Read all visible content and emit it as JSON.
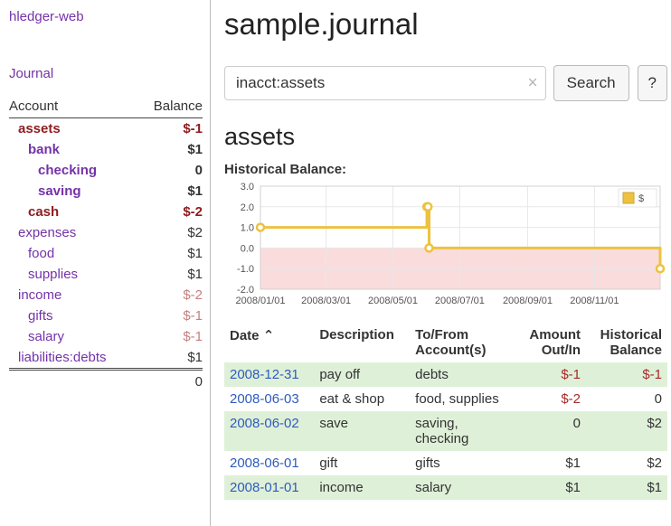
{
  "app": {
    "brand": "hledger-web"
  },
  "sidebar": {
    "journal_link": "Journal",
    "table": {
      "account_header": "Account",
      "balance_header": "Balance"
    },
    "accounts": [
      {
        "name": "assets",
        "balance": "$-1"
      },
      {
        "name": "bank",
        "balance": "$1"
      },
      {
        "name": "checking",
        "balance": "0"
      },
      {
        "name": "saving",
        "balance": "$1"
      },
      {
        "name": "cash",
        "balance": "$-2"
      },
      {
        "name": "expenses",
        "balance": "$2"
      },
      {
        "name": "food",
        "balance": "$1"
      },
      {
        "name": "supplies",
        "balance": "$1"
      },
      {
        "name": "income",
        "balance": "$-2"
      },
      {
        "name": "gifts",
        "balance": "$-1"
      },
      {
        "name": "salary",
        "balance": "$-1"
      },
      {
        "name": "liabilities:debts",
        "balance": "$1"
      }
    ],
    "total": "0"
  },
  "header": {
    "title": "sample.journal"
  },
  "search": {
    "value": "inacct:assets",
    "clear_icon": "×",
    "button": "Search",
    "help_button": "?"
  },
  "account_page": {
    "heading": "assets",
    "chart_label": "Historical Balance:"
  },
  "chart_data": {
    "type": "line",
    "step": true,
    "title": "Historical Balance",
    "series": [
      {
        "name": "$",
        "points": [
          [
            "2008-01-01",
            1
          ],
          [
            "2008-06-01",
            2
          ],
          [
            "2008-06-02",
            2
          ],
          [
            "2008-06-03",
            0
          ],
          [
            "2008-12-31",
            -1
          ]
        ]
      }
    ],
    "xlim": [
      "2008-01-01",
      "2008-12-31"
    ],
    "ylim": [
      -2,
      3
    ],
    "yticks": [
      {
        "v": 3,
        "label": "3.0"
      },
      {
        "v": 2,
        "label": "2.0"
      },
      {
        "v": 1,
        "label": "1.0"
      },
      {
        "v": 0,
        "label": "0.0"
      },
      {
        "v": -1,
        "label": "-1.0"
      },
      {
        "v": -2,
        "label": "-2.0"
      }
    ],
    "xticks": [
      {
        "date": "2008-01-01",
        "label": "2008/01/01"
      },
      {
        "date": "2008-03-01",
        "label": "2008/03/01"
      },
      {
        "date": "2008-05-01",
        "label": "2008/05/01"
      },
      {
        "date": "2008-07-01",
        "label": "2008/07/01"
      },
      {
        "date": "2008-09-01",
        "label": "2008/09/01"
      },
      {
        "date": "2008-11-01",
        "label": "2008/11/01"
      }
    ],
    "legend_position": "top-right",
    "grid": true,
    "colors": {
      "line": "#edc240",
      "negative_region": "#fbdcdc"
    }
  },
  "transactions": {
    "headers": {
      "date": "Date",
      "sort_indicator": "⌃",
      "description": "Description",
      "account_line1": "To/From",
      "account_line2": "Account(s)",
      "amount_line1": "Amount",
      "amount_line2": "Out/In",
      "balance_line1": "Historical",
      "balance_line2": "Balance"
    },
    "rows": [
      {
        "date": "2008-12-31",
        "description": "pay off",
        "accounts": "debts",
        "amount": "$-1",
        "balance": "$-1"
      },
      {
        "date": "2008-06-03",
        "description": "eat & shop",
        "accounts": "food, supplies",
        "amount": "$-2",
        "balance": "0"
      },
      {
        "date": "2008-06-02",
        "description": "save",
        "accounts": "saving, checking",
        "amount": "0",
        "balance": "$2"
      },
      {
        "date": "2008-06-01",
        "description": "gift",
        "accounts": "gifts",
        "amount": "$1",
        "balance": "$2"
      },
      {
        "date": "2008-01-01",
        "description": "income",
        "accounts": "salary",
        "amount": "$1",
        "balance": "$1"
      }
    ]
  },
  "colors": {
    "accent_purple": "#7432a8",
    "link_blue": "#2f5bbf",
    "negative_strong": "#8f1d21",
    "negative_soft": "#c67f7f",
    "table_negative": "#a82a2a",
    "row_stripe_green": "#dff0d8",
    "chart_line_gold": "#edc240",
    "chart_negative_fill": "#fbdcdc"
  }
}
